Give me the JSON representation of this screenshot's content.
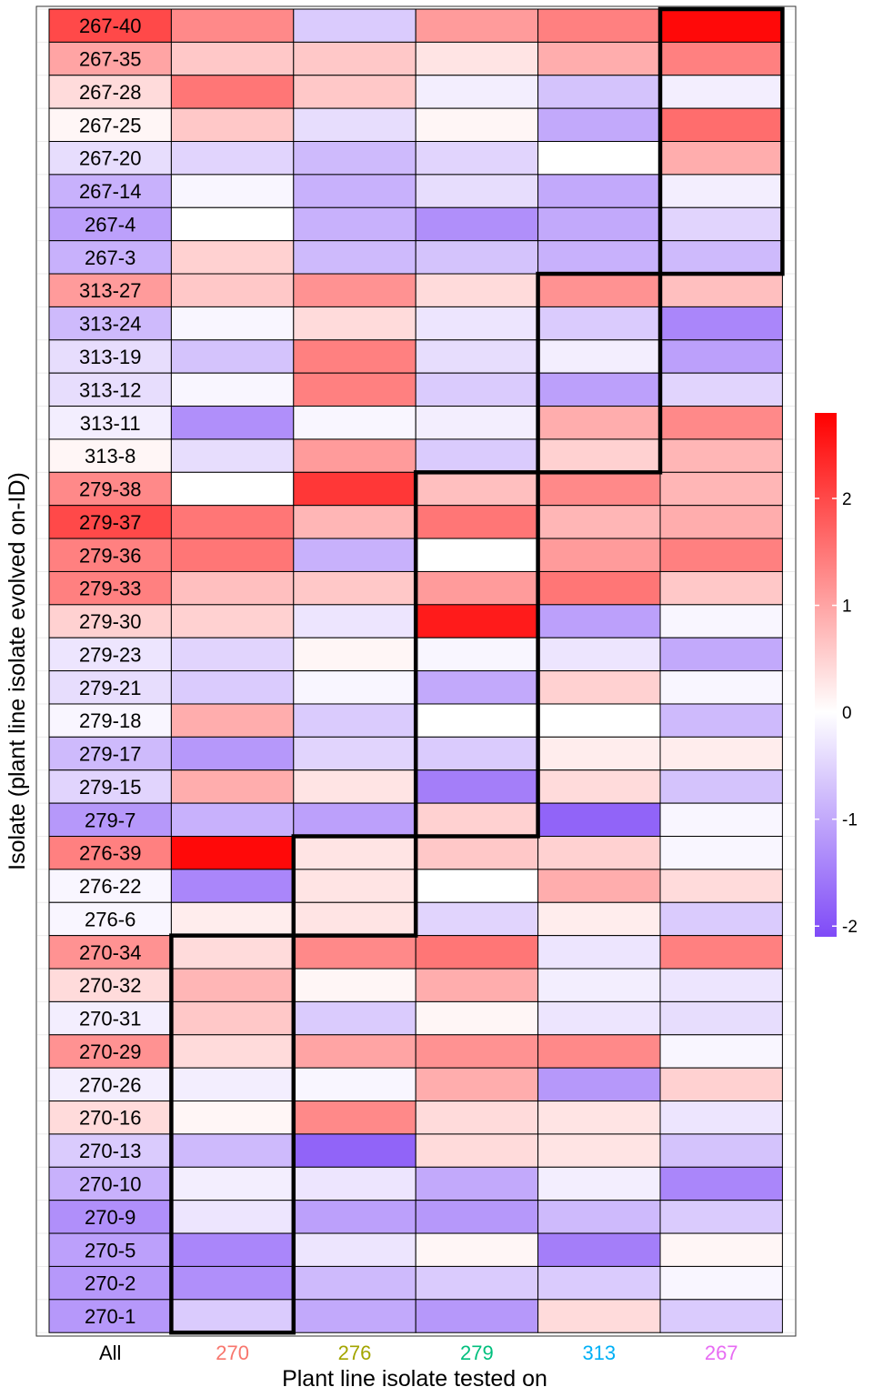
{
  "chart_data": {
    "type": "heatmap",
    "title": "",
    "xlabel": "Plant line isolate tested on",
    "ylabel": "Isolate (plant line isolate evolved on-ID)",
    "columns": [
      "All",
      "270",
      "276",
      "279",
      "313",
      "267"
    ],
    "column_colors": [
      "#000000",
      "#F8766D",
      "#A3A500",
      "#00BF7D",
      "#00B0F6",
      "#E76BF3"
    ],
    "rows": [
      "267-40",
      "267-35",
      "267-28",
      "267-25",
      "267-20",
      "267-14",
      "267-4",
      "267-3",
      "313-27",
      "313-24",
      "313-19",
      "313-12",
      "313-11",
      "313-8",
      "279-38",
      "279-37",
      "279-36",
      "279-33",
      "279-30",
      "279-23",
      "279-21",
      "279-18",
      "279-17",
      "279-15",
      "279-7",
      "276-39",
      "276-22",
      "276-6",
      "270-34",
      "270-32",
      "270-31",
      "270-29",
      "270-26",
      "270-16",
      "270-13",
      "270-10",
      "270-9",
      "270-5",
      "270-2",
      "270-1"
    ],
    "values": [
      [
        2.0,
        1.3,
        -0.6,
        1.1,
        1.4,
        2.7
      ],
      [
        1.0,
        0.6,
        0.6,
        0.3,
        0.9,
        1.4
      ],
      [
        0.4,
        1.5,
        0.6,
        -0.2,
        -0.7,
        -0.2
      ],
      [
        0.1,
        0.6,
        -0.4,
        0.1,
        -1.0,
        1.6
      ],
      [
        -0.4,
        -0.5,
        -0.8,
        -0.5,
        0.0,
        0.9
      ],
      [
        -0.9,
        -0.1,
        -0.9,
        -0.4,
        -1.0,
        -0.2
      ],
      [
        -1.1,
        0.0,
        -0.9,
        -1.3,
        -1.0,
        -0.5
      ],
      [
        -0.9,
        0.5,
        -0.8,
        -0.7,
        -0.9,
        -0.8
      ],
      [
        1.1,
        0.6,
        1.2,
        0.4,
        1.2,
        0.7
      ],
      [
        -0.8,
        -0.1,
        0.4,
        -0.3,
        -0.6,
        -1.4
      ],
      [
        -0.4,
        -0.7,
        1.4,
        -0.4,
        -0.2,
        -1.1
      ],
      [
        -0.4,
        -0.1,
        1.4,
        -0.6,
        -1.1,
        -0.5
      ],
      [
        -0.2,
        -1.3,
        -0.1,
        -0.2,
        0.9,
        1.3
      ],
      [
        0.1,
        -0.4,
        1.1,
        -0.6,
        0.5,
        0.8
      ],
      [
        1.3,
        0.0,
        2.2,
        0.7,
        1.3,
        0.8
      ],
      [
        2.0,
        1.5,
        0.8,
        1.5,
        0.8,
        0.9
      ],
      [
        1.4,
        1.5,
        -0.9,
        0.0,
        1.1,
        1.4
      ],
      [
        1.4,
        0.7,
        0.6,
        1.1,
        1.5,
        0.6
      ],
      [
        0.5,
        0.5,
        -0.3,
        2.5,
        -1.1,
        -0.1
      ],
      [
        -0.3,
        -0.5,
        0.1,
        -0.1,
        -0.3,
        -1.0
      ],
      [
        -0.4,
        -0.6,
        -0.1,
        -1.0,
        0.5,
        -0.1
      ],
      [
        -0.1,
        0.9,
        -0.6,
        0.0,
        0.0,
        -0.8
      ],
      [
        -0.8,
        -1.2,
        -0.5,
        -0.6,
        0.2,
        0.2
      ],
      [
        -0.5,
        0.9,
        0.3,
        -1.5,
        0.4,
        -0.7
      ],
      [
        -1.2,
        -0.9,
        -1.1,
        0.5,
        -1.8,
        -0.1
      ],
      [
        1.4,
        2.7,
        0.3,
        0.6,
        0.5,
        -0.1
      ],
      [
        -0.1,
        -1.4,
        0.3,
        0.0,
        0.9,
        0.4
      ],
      [
        -0.1,
        0.2,
        0.3,
        -0.5,
        0.2,
        -0.6
      ],
      [
        1.2,
        0.4,
        1.3,
        1.5,
        -0.3,
        1.4
      ],
      [
        0.4,
        0.8,
        0.1,
        0.9,
        -0.2,
        -0.3
      ],
      [
        -0.2,
        0.6,
        -0.6,
        0.1,
        -0.3,
        -0.4
      ],
      [
        1.2,
        0.4,
        1.0,
        1.2,
        1.3,
        -0.1
      ],
      [
        -0.2,
        -0.2,
        -0.1,
        0.9,
        -1.2,
        0.5
      ],
      [
        0.4,
        0.1,
        1.3,
        0.4,
        0.3,
        -0.3
      ],
      [
        -0.6,
        -0.8,
        -1.8,
        0.4,
        0.3,
        -0.7
      ],
      [
        -0.9,
        -0.2,
        -0.3,
        -1.0,
        -0.2,
        -1.4
      ],
      [
        -1.3,
        -0.3,
        -1.1,
        -1.2,
        -0.8,
        -0.6
      ],
      [
        -1.1,
        -1.4,
        -0.3,
        0.1,
        -1.5,
        0.1
      ],
      [
        -1.2,
        -1.3,
        -0.8,
        -0.6,
        -0.6,
        -0.1
      ],
      [
        -1.2,
        -0.6,
        -1.0,
        -1.2,
        0.4,
        -0.6
      ]
    ],
    "highlight_blocks": [
      {
        "column": "267",
        "rows": [
          "267-40",
          "267-3"
        ]
      },
      {
        "column": "313",
        "rows": [
          "313-27",
          "313-8"
        ]
      },
      {
        "column": "279",
        "rows": [
          "279-38",
          "279-7"
        ]
      },
      {
        "column": "276",
        "rows": [
          "276-39",
          "276-6"
        ]
      },
      {
        "column": "270",
        "rows": [
          "270-34",
          "270-1"
        ]
      }
    ],
    "color_scale": {
      "low": "#7F4AF7",
      "mid": "#FFFFFF",
      "high": "#FF0000",
      "min": -2.1,
      "max": 2.8,
      "ticks": [
        -2,
        -1,
        0,
        1,
        2
      ]
    },
    "legend_position": "right"
  }
}
